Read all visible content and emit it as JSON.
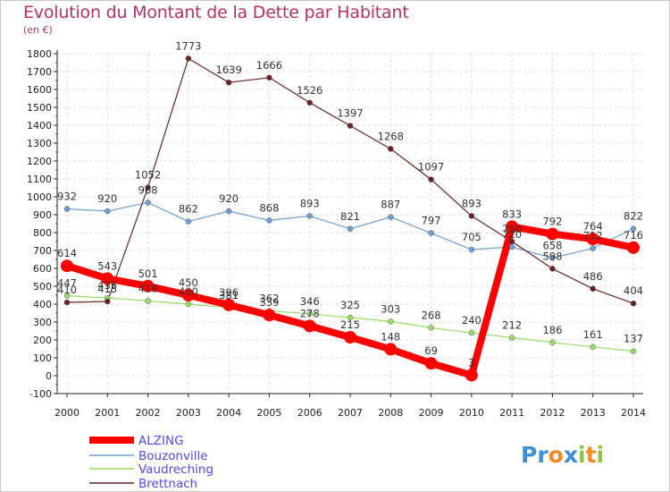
{
  "chart_data": {
    "type": "line",
    "title": "Evolution du Montant de la Dette par Habitant",
    "subtitle": "(en €)",
    "xlabel": "",
    "ylabel": "",
    "x": [
      "2000",
      "2001",
      "2002",
      "2003",
      "2004",
      "2005",
      "2006",
      "2007",
      "2008",
      "2009",
      "2010",
      "2011",
      "2012",
      "2013",
      "2014"
    ],
    "ylim": [
      -100,
      1800
    ],
    "yticks": [
      -100,
      0,
      100,
      200,
      300,
      400,
      500,
      600,
      700,
      800,
      900,
      1000,
      1100,
      1200,
      1300,
      1400,
      1500,
      1600,
      1700,
      1800
    ],
    "grid": true,
    "legend_position": "bottom-left",
    "series": [
      {
        "name": "ALZING",
        "color": "#ff0000",
        "values": [
          614,
          543,
          501,
          450,
          396,
          339,
          278,
          215,
          148,
          69,
          3,
          833,
          792,
          764,
          716
        ]
      },
      {
        "name": "Bouzonville",
        "color": "#6f9fd4",
        "values": [
          932,
          920,
          968,
          862,
          920,
          868,
          893,
          821,
          887,
          797,
          705,
          720,
          658,
          712,
          822
        ]
      },
      {
        "name": "Vaudreching",
        "color": "#99dd66",
        "values": [
          447,
          435,
          418,
          400,
          381,
          362,
          346,
          325,
          303,
          268,
          240,
          212,
          186,
          161,
          137
        ]
      },
      {
        "name": "Brettnach",
        "color": "#6b2222",
        "values": [
          410,
          415,
          1052,
          1773,
          1639,
          1666,
          1526,
          1397,
          1268,
          1097,
          893,
          750,
          598,
          486,
          404
        ]
      }
    ]
  },
  "logo": {
    "text": "Proxiti"
  }
}
